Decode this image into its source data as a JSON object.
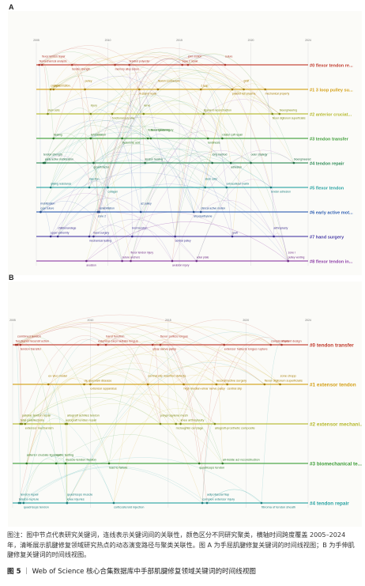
{
  "panels": {
    "a": {
      "letter": "A"
    },
    "b": {
      "letter": "B"
    }
  },
  "caption": {
    "text1": "图注：图中节点代表研究关键词，连线表示关键词间的关联性，颜色区分不同研究聚类，横轴时间跨度覆盖 2005–2024 年，清晰展示肌腱修复领域研究热点的动态演变路径与聚类关联性。",
    "text2": "图 A 为手屈肌腱修复关键词的时间线视图；B 为手伸肌腱修复关键词的时间线视图。"
  },
  "figure_title": {
    "number": "图 5",
    "separator": "｜",
    "text": "Web of Science 核心合集数据库中手部肌腱修复领域关键词的时间线视图"
  },
  "chart_data": [
    {
      "type": "timeline",
      "panel": "A",
      "xlim": [
        2005,
        2024
      ],
      "axis_ticks": [
        "2005",
        "2010",
        "2015",
        "2020",
        "2024"
      ],
      "clusters": [
        {
          "label": "#0 flexor tendon re...",
          "color": "#c0392b"
        },
        {
          "label": "#1 3 loop pulley su...",
          "color": "#d4a017"
        },
        {
          "label": "#2 anterior cruciat...",
          "color": "#b5b82a"
        },
        {
          "label": "#3 tendon transfer",
          "color": "#3f9e3a"
        },
        {
          "label": "#4 tendon repair",
          "color": "#2e8b57"
        },
        {
          "label": "#5 flexor tendon",
          "color": "#2aa3a3"
        },
        {
          "label": "#6 early active mot...",
          "color": "#2f5fb3"
        },
        {
          "label": "#7 hand surgery",
          "color": "#4b3fa8"
        },
        {
          "label": "#8 flexor tendon in...",
          "color": "#8e3fa8"
        }
      ],
      "keywords": [
        {
          "t": "biomechanical analysis",
          "x": 2005.2,
          "c": 0,
          "color": "#b03a2e"
        },
        {
          "t": "flexor tendon repair",
          "x": 2005.4,
          "c": 0,
          "color": "#b03a2e"
        },
        {
          "t": "memory alloy suture",
          "x": 2010.5,
          "c": 0,
          "color": "#b03a2e"
        },
        {
          "t": "braided polyester",
          "x": 2011.5,
          "c": 0,
          "color": "#b03a2e"
        },
        {
          "t": "joint motion",
          "x": 2015.6,
          "c": 0,
          "color": "#b03a2e"
        },
        {
          "t": "tensile strength",
          "x": 2007.5,
          "c": 0,
          "color": "#b03a2e"
        },
        {
          "t": "zone 2 repair",
          "x": 2015.2,
          "c": 0,
          "color": "#b03a2e"
        },
        {
          "t": "suture",
          "x": 2018.2,
          "c": 0,
          "color": "#b03a2e"
        },
        {
          "t": "cruciate",
          "x": 2006.0,
          "c": 1,
          "color": "#a67c00"
        },
        {
          "t": "pulley",
          "x": 2008.4,
          "c": 1,
          "color": "#a67c00"
        },
        {
          "t": "platelet rich plasma",
          "x": 2018.7,
          "c": 1,
          "color": "#a67c00"
        },
        {
          "t": "gap formation",
          "x": 2006.2,
          "c": 1,
          "color": "#a67c00"
        },
        {
          "t": "flexion contracture",
          "x": 2013.5,
          "c": 1,
          "color": "#a67c00"
        },
        {
          "t": "4-strand repair",
          "x": 2012.2,
          "c": 1,
          "color": "#a67c00"
        },
        {
          "t": "2 loop",
          "x": 2016.5,
          "c": 1,
          "color": "#a67c00"
        },
        {
          "t": "graft",
          "x": 2019.5,
          "c": 1,
          "color": "#a67c00"
        },
        {
          "t": "mechanical property",
          "x": 2021.0,
          "c": 1,
          "color": "#a67c00"
        },
        {
          "t": "ligament reconstruction",
          "x": 2016.7,
          "c": 2,
          "color": "#7d8a16"
        },
        {
          "t": "nerve",
          "x": 2012.5,
          "c": 2,
          "color": "#7d8a16"
        },
        {
          "t": "flexor digitorum superficialis",
          "x": 2021.5,
          "c": 2,
          "color": "#7d8a16"
        },
        {
          "t": "stem cells",
          "x": 2005.8,
          "c": 2,
          "color": "#7d8a16"
        },
        {
          "t": "injury",
          "x": 2008.8,
          "c": 2,
          "color": "#7d8a16"
        },
        {
          "t": "functional outcome",
          "x": 2010.3,
          "c": 2,
          "color": "#7d8a16"
        },
        {
          "t": "bioengineering",
          "x": 2022.0,
          "c": 2,
          "color": "#7d8a16"
        },
        {
          "t": "rehabilitation",
          "x": 2008.8,
          "c": 3,
          "color": "#2d7a26"
        },
        {
          "t": "tissue engineering",
          "x": 2012.8,
          "c": 3,
          "color": "#2d7a26"
        },
        {
          "t": "tendinosis",
          "x": 2017.0,
          "c": 3,
          "color": "#2d7a26"
        },
        {
          "t": "healing",
          "x": 2006.2,
          "c": 3,
          "color": "#2d7a26"
        },
        {
          "t": "flexor tendon injury",
          "x": 2013.0,
          "c": 3,
          "color": "#2d7a26"
        },
        {
          "t": "hyaluronic acid",
          "x": 2011.0,
          "c": 3,
          "color": "#2d7a26"
        },
        {
          "t": "rotator cuff repair",
          "x": 2018.0,
          "c": 3,
          "color": "#2d7a26"
        },
        {
          "t": "early active mobilization",
          "x": 2005.6,
          "c": 4,
          "color": "#1f6b43"
        },
        {
          "t": "tendon strength",
          "x": 2005.5,
          "c": 4,
          "color": "#1f6b43"
        },
        {
          "t": "growth factor",
          "x": 2009.0,
          "c": 4,
          "color": "#1f6b43"
        },
        {
          "t": "tendon healing",
          "x": 2012.6,
          "c": 4,
          "color": "#1f6b43"
        },
        {
          "t": "long method",
          "x": 2017.3,
          "c": 4,
          "color": "#1f6b43"
        },
        {
          "t": "adhesion",
          "x": 2018.6,
          "c": 4,
          "color": "#1f6b43"
        },
        {
          "t": "bioengineered",
          "x": 2023.0,
          "c": 4,
          "color": "#1f6b43"
        },
        {
          "t": "outer strategy",
          "x": 2020.0,
          "c": 4,
          "color": "#1f6b43"
        },
        {
          "t": "gliding resistance",
          "x": 2006.0,
          "c": 5,
          "color": "#1a7d7d"
        },
        {
          "t": "injection",
          "x": 2008.7,
          "c": 5,
          "color": "#1a7d7d"
        },
        {
          "t": "collagen",
          "x": 2010.0,
          "c": 5,
          "color": "#1a7d7d"
        },
        {
          "t": "extracellular matrix",
          "x": 2018.3,
          "c": 5,
          "color": "#1a7d7d"
        },
        {
          "t": "stem cells",
          "x": 2016.8,
          "c": 5,
          "color": "#1a7d7d"
        },
        {
          "t": "tendon adhesion",
          "x": 2021.4,
          "c": 5,
          "color": "#1a7d7d"
        },
        {
          "t": "core suture",
          "x": 2005.3,
          "c": 6,
          "color": "#244c8f"
        },
        {
          "t": "mobilization",
          "x": 2005.3,
          "c": 6,
          "color": "#244c8f"
        },
        {
          "t": "zone 2",
          "x": 2009.3,
          "c": 6,
          "color": "#244c8f"
        },
        {
          "t": "rehabilitation",
          "x": 2009.4,
          "c": 6,
          "color": "#244c8f"
        },
        {
          "t": "a2 pulley",
          "x": 2012.3,
          "c": 6,
          "color": "#244c8f"
        },
        {
          "t": "all polyethylene",
          "x": 2016.0,
          "c": 6,
          "color": "#244c8f"
        },
        {
          "t": "clinical active motion",
          "x": 2016.5,
          "c": 6,
          "color": "#244c8f"
        },
        {
          "t": "upper extremity",
          "x": 2006.0,
          "c": 7,
          "color": "#3b2f8f"
        },
        {
          "t": "childrenandage",
          "x": 2006.5,
          "c": 7,
          "color": "#3b2f8f"
        },
        {
          "t": "mechanical testing",
          "x": 2008.7,
          "c": 7,
          "color": "#3b2f8f"
        },
        {
          "t": "hand surgery",
          "x": 2009.0,
          "c": 7,
          "color": "#3b2f8f"
        },
        {
          "t": "knot location",
          "x": 2011.7,
          "c": 7,
          "color": "#3b2f8f"
        },
        {
          "t": "central pulley",
          "x": 2014.7,
          "c": 7,
          "color": "#3b2f8f"
        },
        {
          "t": "graft",
          "x": 2018.7,
          "c": 7,
          "color": "#3b2f8f"
        },
        {
          "t": "arthroplasty",
          "x": 2021.6,
          "c": 7,
          "color": "#3b2f8f"
        },
        {
          "t": "suture anchors",
          "x": 2011.0,
          "c": 8,
          "color": "#6d2a85"
        },
        {
          "t": "flexor tendon injury",
          "x": 2011.6,
          "c": 8,
          "color": "#6d2a85"
        },
        {
          "t": "avulsion injury",
          "x": 2014.5,
          "c": 8,
          "color": "#6d2a85"
        },
        {
          "t": "volar plate",
          "x": 2016.2,
          "c": 8,
          "color": "#6d2a85"
        },
        {
          "t": "zone I",
          "x": 2022.6,
          "c": 8,
          "color": "#6d2a85"
        },
        {
          "t": "avulsion",
          "x": 2008.5,
          "c": 8,
          "color": "#6d2a85"
        },
        {
          "t": "pulley venting",
          "x": 2022.6,
          "c": 8,
          "color": "#6d2a85"
        }
      ]
    },
    {
      "type": "timeline",
      "panel": "B",
      "xlim": [
        2005,
        2024
      ],
      "axis_ticks": [
        "2005",
        "2010",
        "2015",
        "2020",
        "2024"
      ],
      "clusters": [
        {
          "label": "#0 tendon transfer",
          "color": "#c0392b"
        },
        {
          "label": "#1 extensor tendon",
          "color": "#d4a017"
        },
        {
          "label": "#2 extensor mechani...",
          "color": "#b5b82a"
        },
        {
          "label": "#3 biomechanical te...",
          "color": "#3f9e3a"
        },
        {
          "label": "#4 tendon repair",
          "color": "#2aa3a3"
        }
      ],
      "keywords": [
        {
          "t": "functional reconstruction",
          "x": 2005.2,
          "c": 0,
          "color": "#b03a2e"
        },
        {
          "t": "combined tendon",
          "x": 2005.3,
          "c": 0,
          "color": "#b03a2e"
        },
        {
          "t": "tendon transfer",
          "x": 2005.5,
          "c": 0,
          "color": "#b03a2e"
        },
        {
          "t": "extensor carpi radialis longus",
          "x": 2010.5,
          "c": 0,
          "color": "#b03a2e"
        },
        {
          "t": "flexor pollicis longus",
          "x": 2014.5,
          "c": 0,
          "color": "#b03a2e"
        },
        {
          "t": "extensor hallucis longus rupture",
          "x": 2018.6,
          "c": 0,
          "color": "#b03a2e"
        },
        {
          "t": "implant design",
          "x": 2022.3,
          "c": 0,
          "color": "#b03a2e"
        },
        {
          "t": "hand function",
          "x": 2011.0,
          "c": 0,
          "color": "#b03a2e"
        },
        {
          "t": "ulnar nerve palsy",
          "x": 2014.0,
          "c": 0,
          "color": "#b03a2e"
        },
        {
          "t": "complications",
          "x": 2021.6,
          "c": 0,
          "color": "#b03a2e"
        },
        {
          "t": "de quervain disease",
          "x": 2009.6,
          "c": 1,
          "color": "#a67c00"
        },
        {
          "t": "central slip insertion defects",
          "x": 2013.7,
          "c": 1,
          "color": "#a67c00"
        },
        {
          "t": "central slip",
          "x": 2018.8,
          "c": 1,
          "color": "#a67c00"
        },
        {
          "t": "flexor digitorum superficialis",
          "x": 2021.2,
          "c": 1,
          "color": "#a67c00"
        },
        {
          "t": "ex vivo model",
          "x": 2007.3,
          "c": 1,
          "color": "#a67c00"
        },
        {
          "t": "extensor apparatus",
          "x": 2010.0,
          "c": 1,
          "color": "#a67c00"
        },
        {
          "t": "reconstructive surgery",
          "x": 2018.1,
          "c": 1,
          "color": "#a67c00"
        },
        {
          "t": "zone chopp",
          "x": 2022.2,
          "c": 1,
          "color": "#a67c00"
        },
        {
          "t": "high median-ulnar nerve palsy",
          "x": 2016.0,
          "c": 1,
          "color": "#a67c00"
        },
        {
          "t": "total patellectomy",
          "x": 2005.5,
          "c": 2,
          "color": "#7d8a16"
        },
        {
          "t": "patellar tendon repair",
          "x": 2005.6,
          "c": 2,
          "color": "#7d8a16"
        },
        {
          "t": "extensor mechanism",
          "x": 2005.8,
          "c": 2,
          "color": "#7d8a16"
        },
        {
          "t": "autograft tendon repair",
          "x": 2008.4,
          "c": 2,
          "color": "#7d8a16"
        },
        {
          "t": "allograft achilles tendon",
          "x": 2008.5,
          "c": 2,
          "color": "#7d8a16"
        },
        {
          "t": "mcloughlin cerclage",
          "x": 2015.5,
          "c": 2,
          "color": "#7d8a16"
        },
        {
          "t": "knee arthroplasty",
          "x": 2015.8,
          "c": 2,
          "color": "#7d8a16"
        },
        {
          "t": "polypropylene mesh",
          "x": 2014.5,
          "c": 2,
          "color": "#7d8a16"
        },
        {
          "t": "allograft-prosthetic composite",
          "x": 2018.0,
          "c": 2,
          "color": "#7d8a16"
        },
        {
          "t": "muscle-tendon fixation",
          "x": 2008.4,
          "c": 3,
          "color": "#2d7a26"
        },
        {
          "t": "cyclic testing",
          "x": 2007.8,
          "c": 3,
          "color": "#2d7a26"
        },
        {
          "t": "load to failure",
          "x": 2011.2,
          "c": 3,
          "color": "#2d7a26"
        },
        {
          "t": "all-inside acl reconstruction",
          "x": 2018.5,
          "c": 3,
          "color": "#2d7a26"
        },
        {
          "t": "anterior cruciate ligament",
          "x": 2005.9,
          "c": 3,
          "color": "#2d7a26"
        },
        {
          "t": "quadriceps tendon",
          "x": 2017.0,
          "c": 3,
          "color": "#2d7a26"
        },
        {
          "t": "tendon rupture",
          "x": 2005.4,
          "c": 4,
          "color": "#1a7d7d"
        },
        {
          "t": "tendon repair",
          "x": 2005.5,
          "c": 4,
          "color": "#1a7d7d"
        },
        {
          "t": "quadriceps tendon",
          "x": 2005.7,
          "c": 4,
          "color": "#1a7d7d"
        },
        {
          "t": "knee injuries",
          "x": 2008.5,
          "c": 4,
          "color": "#1a7d7d"
        },
        {
          "t": "quadriceps muscle",
          "x": 2008.5,
          "c": 4,
          "color": "#1a7d7d"
        },
        {
          "t": "corticosteroid injection",
          "x": 2011.5,
          "c": 4,
          "color": "#1a7d7d"
        },
        {
          "t": "complex extensor injury",
          "x": 2017.2,
          "c": 4,
          "color": "#1a7d7d"
        },
        {
          "t": "adipofascial flap",
          "x": 2017.5,
          "c": 4,
          "color": "#1a7d7d"
        },
        {
          "t": "fibroma of tendon sheath",
          "x": 2021.0,
          "c": 4,
          "color": "#1a7d7d"
        }
      ]
    }
  ]
}
